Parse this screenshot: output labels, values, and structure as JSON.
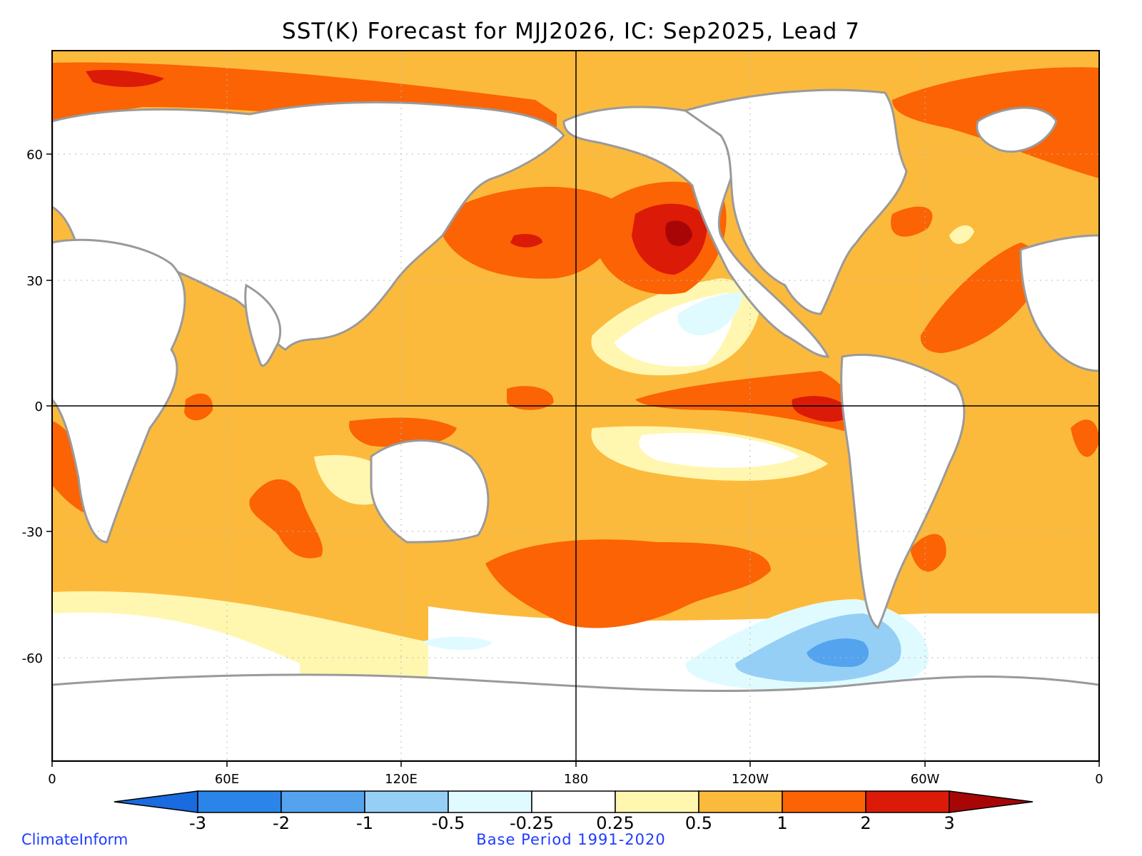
{
  "title": "SST(K) Forecast for MJJ2026, IC: Sep2025, Lead 7",
  "x_ticks": [
    "0",
    "60E",
    "120E",
    "180",
    "120W",
    "60W",
    "0"
  ],
  "y_ticks": [
    "60",
    "30",
    "0",
    "-30",
    "-60"
  ],
  "colorbar": {
    "labels": [
      "-3",
      "-2",
      "-1",
      "-0.5",
      "-0.25",
      "0.25",
      "0.5",
      "1",
      "2",
      "3"
    ],
    "colors": [
      "#1a6ae0",
      "#2b84e8",
      "#54a3ee",
      "#96cff6",
      "#e0fbff",
      "#ffffff",
      "#fff7b0",
      "#fcba3c",
      "#fb6305",
      "#db1a08",
      "#a80606"
    ]
  },
  "footer": {
    "left": "ClimateInform",
    "center": "Base Period 1991-2020"
  }
}
